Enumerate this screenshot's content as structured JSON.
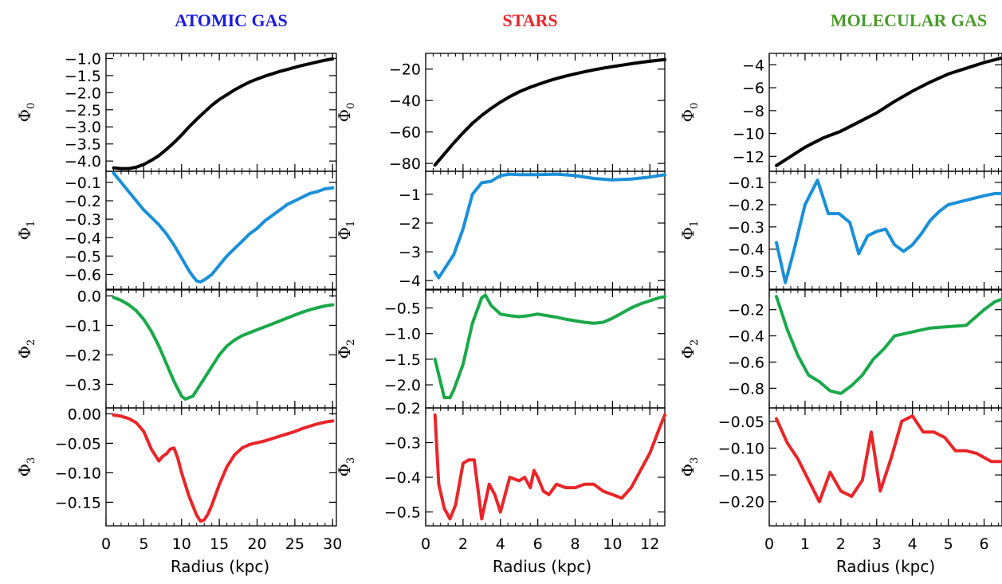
{
  "chart_data": [
    {
      "type": "line",
      "title": "ATOMIC GAS",
      "title_color": "#1a1adc",
      "xlabel": "Radius (kpc)",
      "xlim": [
        0,
        30.5
      ],
      "xticks": [
        0,
        5,
        10,
        15,
        20,
        25,
        30
      ],
      "panels": [
        {
          "ylabel": "Φ",
          "ysub": "0",
          "color": "#000000",
          "ylim": [
            -4.3,
            -0.85
          ],
          "yticks": [
            -4.0,
            -3.5,
            -3.0,
            -2.5,
            -2.0,
            -1.5,
            -1.0
          ],
          "ytick_labels": [
            "−4.0",
            "−3.5",
            "−3.0",
            "−2.5",
            "−2.0",
            "−1.5",
            "−1.0"
          ],
          "x": [
            1,
            2,
            3,
            4,
            5,
            6,
            7,
            8,
            9,
            10,
            11,
            12,
            13,
            14,
            15,
            16,
            17,
            18,
            19,
            20,
            21,
            22,
            23,
            24,
            25,
            26,
            27,
            28,
            29,
            30
          ],
          "y": [
            -4.2,
            -4.22,
            -4.22,
            -4.18,
            -4.1,
            -3.98,
            -3.84,
            -3.66,
            -3.46,
            -3.24,
            -3.0,
            -2.78,
            -2.57,
            -2.37,
            -2.2,
            -2.06,
            -1.92,
            -1.8,
            -1.69,
            -1.6,
            -1.52,
            -1.45,
            -1.38,
            -1.32,
            -1.26,
            -1.2,
            -1.15,
            -1.1,
            -1.05,
            -1.01
          ]
        },
        {
          "ylabel": "Φ",
          "ysub": "1",
          "color": "#1a8fd8",
          "ylim": [
            -0.68,
            -0.04
          ],
          "yticks": [
            -0.6,
            -0.5,
            -0.4,
            -0.3,
            -0.2,
            -0.1
          ],
          "ytick_labels": [
            "−0.6",
            "−0.5",
            "−0.4",
            "−0.3",
            "−0.2",
            "−0.1"
          ],
          "x": [
            1,
            2,
            3,
            4,
            5,
            6,
            7,
            8,
            9,
            10,
            11,
            11.5,
            12,
            12.5,
            13,
            14,
            15,
            16,
            17,
            18,
            19,
            20,
            21,
            22,
            23,
            24,
            25,
            26,
            27,
            28,
            29,
            30
          ],
          "y": [
            -0.05,
            -0.1,
            -0.15,
            -0.2,
            -0.25,
            -0.29,
            -0.33,
            -0.38,
            -0.44,
            -0.51,
            -0.58,
            -0.61,
            -0.635,
            -0.64,
            -0.63,
            -0.6,
            -0.55,
            -0.5,
            -0.46,
            -0.42,
            -0.38,
            -0.35,
            -0.31,
            -0.28,
            -0.25,
            -0.22,
            -0.2,
            -0.18,
            -0.16,
            -0.15,
            -0.135,
            -0.13
          ]
        },
        {
          "ylabel": "Φ",
          "ysub": "2",
          "color": "#1aa84a",
          "ylim": [
            -0.38,
            0.02
          ],
          "yticks": [
            -0.3,
            -0.2,
            -0.1,
            0.0
          ],
          "ytick_labels": [
            "−0.3",
            "−0.2",
            "−0.1",
            "0.0"
          ],
          "x": [
            1,
            2,
            3,
            4,
            5,
            6,
            7,
            8,
            9,
            10,
            10.5,
            11,
            11.5,
            12,
            13,
            14,
            15,
            16,
            17,
            18,
            19,
            20,
            21,
            22,
            23,
            24,
            25,
            26,
            27,
            28,
            29,
            30
          ],
          "y": [
            -0.005,
            -0.015,
            -0.03,
            -0.05,
            -0.08,
            -0.12,
            -0.17,
            -0.23,
            -0.29,
            -0.34,
            -0.35,
            -0.345,
            -0.34,
            -0.32,
            -0.28,
            -0.24,
            -0.2,
            -0.17,
            -0.15,
            -0.135,
            -0.125,
            -0.115,
            -0.105,
            -0.095,
            -0.085,
            -0.075,
            -0.065,
            -0.055,
            -0.047,
            -0.04,
            -0.034,
            -0.03
          ]
        },
        {
          "ylabel": "Φ",
          "ysub": "3",
          "color": "#e8262a",
          "ylim": [
            -0.19,
            0.01
          ],
          "yticks": [
            -0.15,
            -0.1,
            -0.05,
            0.0
          ],
          "ytick_labels": [
            "−0.15",
            "−0.10",
            "−0.05",
            "0.00"
          ],
          "x": [
            1,
            2,
            3,
            4,
            5,
            6,
            7,
            7.5,
            8,
            8.5,
            9,
            9.5,
            10,
            11,
            12,
            12.5,
            13,
            13.5,
            14,
            15,
            16,
            17,
            18,
            19,
            20,
            21,
            22,
            23,
            24,
            25,
            26,
            27,
            28,
            29,
            30
          ],
          "y": [
            -0.002,
            -0.004,
            -0.008,
            -0.015,
            -0.03,
            -0.06,
            -0.08,
            -0.072,
            -0.068,
            -0.06,
            -0.058,
            -0.075,
            -0.1,
            -0.14,
            -0.172,
            -0.182,
            -0.18,
            -0.17,
            -0.155,
            -0.12,
            -0.09,
            -0.07,
            -0.058,
            -0.052,
            -0.049,
            -0.046,
            -0.042,
            -0.038,
            -0.034,
            -0.03,
            -0.025,
            -0.021,
            -0.017,
            -0.014,
            -0.012
          ]
        }
      ]
    },
    {
      "type": "line",
      "title": "STARS",
      "title_color": "#e8262a",
      "xlabel": "Radius (kpc)",
      "xlim": [
        0,
        12.8
      ],
      "xticks": [
        0,
        2,
        4,
        6,
        8,
        10,
        12
      ],
      "panels": [
        {
          "ylabel": "Φ",
          "ysub": "0",
          "color": "#000000",
          "ylim": [
            -85,
            -10
          ],
          "yticks": [
            -80,
            -60,
            -40,
            -20
          ],
          "ytick_labels": [
            "−80",
            "−60",
            "−40",
            "−20"
          ],
          "x": [
            0.5,
            1,
            1.5,
            2,
            2.5,
            3,
            3.5,
            4,
            4.5,
            5,
            5.5,
            6,
            6.5,
            7,
            7.5,
            8,
            8.5,
            9,
            9.5,
            10,
            10.5,
            11,
            11.5,
            12,
            12.5,
            12.8
          ],
          "y": [
            -81,
            -74,
            -67,
            -60.5,
            -54.5,
            -49.5,
            -45,
            -41,
            -37.5,
            -34.5,
            -32,
            -29.8,
            -27.8,
            -26,
            -24.4,
            -23,
            -21.7,
            -20.5,
            -19.4,
            -18.4,
            -17.5,
            -16.6,
            -15.8,
            -15,
            -14.3,
            -14
          ]
        },
        {
          "ylabel": "Φ",
          "ysub": "1",
          "color": "#1a8fd8",
          "ylim": [
            -4.3,
            -0.2
          ],
          "yticks": [
            -4,
            -3,
            -2,
            -1
          ],
          "ytick_labels": [
            "−4",
            "−3",
            "−2",
            "−1"
          ],
          "x": [
            0.5,
            0.7,
            1,
            1.5,
            2,
            2.5,
            3,
            3.5,
            4,
            4.5,
            5,
            6,
            7,
            8,
            9,
            10,
            11,
            12,
            12.8
          ],
          "y": [
            -3.7,
            -3.9,
            -3.6,
            -3.1,
            -2.2,
            -1.0,
            -0.6,
            -0.55,
            -0.35,
            -0.3,
            -0.32,
            -0.32,
            -0.3,
            -0.35,
            -0.45,
            -0.5,
            -0.47,
            -0.4,
            -0.32
          ]
        },
        {
          "ylabel": "Φ",
          "ysub": "2",
          "color": "#1aa84a",
          "ylim": [
            -2.45,
            -0.15
          ],
          "yticks": [
            -2.0,
            -1.5,
            -1.0,
            -0.5
          ],
          "ytick_labels": [
            "−2.0",
            "−1.5",
            "−1.0",
            "−0.5"
          ],
          "x": [
            0.5,
            1,
            1.3,
            1.5,
            2,
            2.5,
            3,
            3.2,
            3.5,
            4,
            4.5,
            5,
            5.5,
            6,
            6.5,
            7,
            7.5,
            8,
            8.5,
            9,
            9.5,
            10,
            10.5,
            11,
            11.5,
            12,
            12.5,
            12.8
          ],
          "y": [
            -1.5,
            -2.25,
            -2.25,
            -2.1,
            -1.6,
            -0.8,
            -0.3,
            -0.25,
            -0.45,
            -0.62,
            -0.65,
            -0.67,
            -0.65,
            -0.62,
            -0.65,
            -0.68,
            -0.72,
            -0.75,
            -0.78,
            -0.8,
            -0.78,
            -0.7,
            -0.6,
            -0.5,
            -0.42,
            -0.36,
            -0.3,
            -0.28
          ]
        },
        {
          "ylabel": "Φ",
          "ysub": "3",
          "color": "#e8262a",
          "ylim": [
            -0.54,
            -0.2
          ],
          "yticks": [
            -0.5,
            -0.4,
            -0.3,
            -0.2
          ],
          "ytick_labels": [
            "−0.5",
            "−0.4",
            "−0.3",
            "−0.2"
          ],
          "x": [
            0.5,
            0.7,
            1,
            1.3,
            1.6,
            2,
            2.3,
            2.6,
            3,
            3.4,
            3.7,
            4,
            4.5,
            5,
            5.3,
            5.6,
            5.8,
            6,
            6.3,
            6.6,
            7,
            7.5,
            8,
            8.5,
            9,
            9.5,
            10,
            10.5,
            11,
            11.5,
            12,
            12.5,
            12.8
          ],
          "y": [
            -0.22,
            -0.42,
            -0.49,
            -0.52,
            -0.48,
            -0.36,
            -0.35,
            -0.35,
            -0.52,
            -0.42,
            -0.45,
            -0.5,
            -0.4,
            -0.41,
            -0.4,
            -0.43,
            -0.38,
            -0.4,
            -0.44,
            -0.45,
            -0.42,
            -0.43,
            -0.43,
            -0.42,
            -0.42,
            -0.44,
            -0.45,
            -0.46,
            -0.43,
            -0.38,
            -0.33,
            -0.26,
            -0.22
          ]
        }
      ]
    },
    {
      "type": "line",
      "title": "MOLECULAR GAS",
      "title_color": "#4a9a2a",
      "xlabel": "Radius (kpc)",
      "xlim": [
        0,
        6.5
      ],
      "xticks": [
        0,
        1,
        2,
        3,
        4,
        5,
        6
      ],
      "panels": [
        {
          "ylabel": "Φ",
          "ysub": "0",
          "color": "#000000",
          "ylim": [
            -13.3,
            -3.0
          ],
          "yticks": [
            -12,
            -10,
            -8,
            -6,
            -4
          ],
          "ytick_labels": [
            "−12",
            "−10",
            "−8",
            "−6",
            "−4"
          ],
          "x": [
            0.2,
            0.5,
            1,
            1.5,
            2,
            2.5,
            3,
            3.5,
            4,
            4.5,
            5,
            5.5,
            6,
            6.5
          ],
          "y": [
            -12.8,
            -12.2,
            -11.2,
            -10.4,
            -9.8,
            -9.0,
            -8.2,
            -7.2,
            -6.3,
            -5.5,
            -4.8,
            -4.3,
            -3.8,
            -3.4
          ]
        },
        {
          "ylabel": "Φ",
          "ysub": "1",
          "color": "#1a8fd8",
          "ylim": [
            -0.58,
            -0.05
          ],
          "yticks": [
            -0.5,
            -0.4,
            -0.3,
            -0.2,
            -0.1
          ],
          "ytick_labels": [
            "−0.5",
            "−0.4",
            "−0.3",
            "−0.2",
            "−0.1"
          ],
          "x": [
            0.2,
            0.45,
            0.7,
            1,
            1.35,
            1.65,
            1.95,
            2.25,
            2.5,
            2.75,
            3,
            3.25,
            3.5,
            3.75,
            4,
            4.25,
            4.5,
            4.75,
            5,
            5.5,
            6,
            6.3,
            6.5
          ],
          "y": [
            -0.37,
            -0.55,
            -0.4,
            -0.2,
            -0.09,
            -0.24,
            -0.24,
            -0.28,
            -0.42,
            -0.34,
            -0.32,
            -0.31,
            -0.38,
            -0.41,
            -0.38,
            -0.33,
            -0.27,
            -0.23,
            -0.2,
            -0.18,
            -0.16,
            -0.15,
            -0.15
          ]
        },
        {
          "ylabel": "Φ",
          "ysub": "2",
          "color": "#1aa84a",
          "ylim": [
            -0.95,
            -0.05
          ],
          "yticks": [
            -0.8,
            -0.6,
            -0.4,
            -0.2
          ],
          "ytick_labels": [
            "−0.8",
            "−0.6",
            "−0.4",
            "−0.2"
          ],
          "x": [
            0.2,
            0.5,
            0.8,
            1.1,
            1.4,
            1.7,
            2,
            2.3,
            2.6,
            2.9,
            3.2,
            3.5,
            4,
            4.5,
            5,
            5.5,
            6,
            6.3,
            6.5
          ],
          "y": [
            -0.1,
            -0.35,
            -0.55,
            -0.7,
            -0.75,
            -0.82,
            -0.84,
            -0.78,
            -0.7,
            -0.58,
            -0.5,
            -0.4,
            -0.37,
            -0.34,
            -0.33,
            -0.32,
            -0.2,
            -0.14,
            -0.12
          ]
        },
        {
          "ylabel": "Φ",
          "ysub": "3",
          "color": "#e8262a",
          "ylim": [
            -0.245,
            -0.025
          ],
          "yticks": [
            -0.2,
            -0.15,
            -0.1,
            -0.05
          ],
          "ytick_labels": [
            "−0.20",
            "−0.15",
            "−0.10",
            "−0.05"
          ],
          "x": [
            0.2,
            0.5,
            0.8,
            1.1,
            1.4,
            1.7,
            2,
            2.3,
            2.6,
            2.85,
            3.1,
            3.4,
            3.7,
            4,
            4.3,
            4.6,
            4.9,
            5.2,
            5.5,
            5.8,
            6.2,
            6.5
          ],
          "y": [
            -0.045,
            -0.09,
            -0.12,
            -0.16,
            -0.2,
            -0.145,
            -0.18,
            -0.19,
            -0.16,
            -0.07,
            -0.18,
            -0.12,
            -0.05,
            -0.04,
            -0.07,
            -0.07,
            -0.08,
            -0.105,
            -0.105,
            -0.11,
            -0.125,
            -0.125
          ]
        }
      ]
    }
  ]
}
